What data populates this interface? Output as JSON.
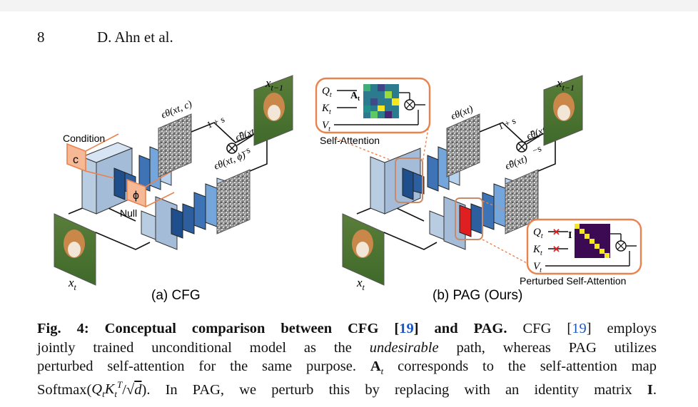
{
  "header": {
    "page_number": "8",
    "authors": "D. Ahn et al."
  },
  "figure": {
    "cfg": {
      "condition_label": "Condition",
      "condition_symbol": "c",
      "null_label": "Null",
      "null_symbol": "ϕ",
      "input_label": "x",
      "input_sub": "t",
      "output_label": "x",
      "output_sub": "t−1",
      "noise_cond_label": "ϵθ(xt, c)",
      "noise_null_label": "ϵθ(xt, ϕ)",
      "guided_label": "ϵ̃θ(xt, c)",
      "plus_label": "1 + s",
      "minus_label": "−s",
      "sublabel": "(a) CFG"
    },
    "pag": {
      "input_label": "x",
      "input_sub": "t",
      "output_label": "x",
      "output_sub": "t−1",
      "noise_top_label": "ϵθ(xt)",
      "noise_bottom_label": "ϵ̂θ(xt)",
      "guided_label": "ϵ̃θ(xt)",
      "plus_label": "1 + s",
      "minus_label": "−s",
      "self_attention_title": "Self-Attention",
      "perturbed_title": "Perturbed Self-Attention",
      "q_label": "Q",
      "k_label": "K",
      "v_label": "V",
      "t_sub": "t",
      "attn_map_label": "A",
      "identity_label": "I",
      "sublabel": "(b) PAG (Ours)"
    }
  },
  "caption": {
    "fig_label": "Fig. 4:",
    "bold_title_1": "Conceptual comparison between CFG [",
    "cite": "19",
    "bold_title_2": "] and PAG.",
    "line1_rest_1": "CFG [",
    "line1_rest_2": "] employs",
    "line2": "jointly trained unconditional model as the",
    "undesirable": "undesirable",
    "line2_end": "path, whereas PAG utilizes",
    "line3": "perturbed self-attention for the same purpose.",
    "line3_at": "A",
    "line3_sub": "t",
    "line3_end": "corresponds to the self-attention map",
    "line4_start": "Softmax(",
    "line4_mid": ". In PAG, we perturb this by replacing with an identity matrix",
    "line4_I": "I",
    "line4_end": "."
  },
  "colors": {
    "orange": "#e8834f",
    "orange_fill": "#f6b895",
    "blue_dark": "#1f4e8c",
    "blue_mid": "#4a86c8",
    "blue_light": "#b8d2ee",
    "red": "#e02020"
  }
}
